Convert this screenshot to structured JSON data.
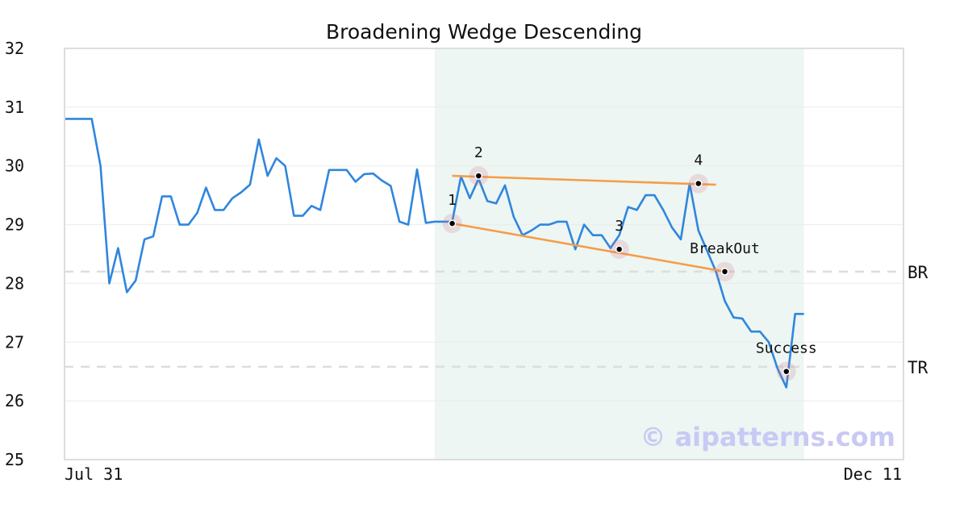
{
  "chart_data": {
    "type": "line",
    "title": "Broadening Wedge Descending",
    "xlabel": "",
    "ylabel": "",
    "ylim": [
      25,
      32
    ],
    "y_ticks": [
      25,
      26,
      27,
      28,
      29,
      30,
      31,
      32
    ],
    "x_tick_labels": {
      "start": "Jul 31",
      "end": "Dec 11"
    },
    "grid": true,
    "series": [
      {
        "color": "#2f86de",
        "values": [
          30.8,
          30.8,
          30.8,
          30.8,
          30.0,
          28.0,
          28.6,
          27.85,
          28.05,
          28.75,
          28.8,
          29.48,
          29.48,
          29.0,
          29.0,
          29.2,
          29.63,
          29.25,
          29.25,
          29.45,
          29.55,
          29.68,
          30.45,
          29.83,
          30.13,
          30.0,
          29.15,
          29.15,
          29.32,
          29.25,
          29.93,
          29.93,
          29.93,
          29.73,
          29.86,
          29.87,
          29.75,
          29.66,
          29.05,
          29.0,
          29.94,
          29.03,
          29.05,
          29.05,
          29.05,
          29.82,
          29.45,
          29.78,
          29.4,
          29.36,
          29.67,
          29.13,
          28.82,
          28.9,
          29.0,
          29.0,
          29.05,
          29.05,
          28.58,
          29.0,
          28.82,
          28.82,
          28.6,
          28.82,
          29.3,
          29.25,
          29.5,
          29.5,
          29.25,
          28.95,
          28.75,
          29.7,
          28.9,
          28.55,
          28.2,
          27.7,
          27.42,
          27.4,
          27.18,
          27.18,
          27.0,
          26.55,
          26.23,
          27.48,
          27.48
        ]
      }
    ],
    "highlight_region": {
      "start_index": 42,
      "end_index": 84,
      "color": "#edf6f2"
    },
    "trend_lines": [
      {
        "color": "#f59d4a",
        "from": {
          "index": 44,
          "value": 29.83
        },
        "to": {
          "index": 74,
          "value": 29.68
        }
      },
      {
        "color": "#f59d4a",
        "from": {
          "index": 44,
          "value": 29.02
        },
        "to": {
          "index": 75,
          "value": 28.2
        }
      }
    ],
    "reference_lines": [
      {
        "label": "BR",
        "value": 28.2,
        "color": "#dddddd"
      },
      {
        "label": "TR",
        "value": 26.58,
        "color": "#dddddd"
      }
    ],
    "markers": [
      {
        "label": "1",
        "index": 44,
        "value": 29.02,
        "label_pos": "above"
      },
      {
        "label": "2",
        "index": 47,
        "value": 29.83,
        "label_pos": "above"
      },
      {
        "label": "3",
        "index": 63,
        "value": 28.58,
        "label_pos": "above"
      },
      {
        "label": "4",
        "index": 72,
        "value": 29.7,
        "label_pos": "above"
      },
      {
        "label": "BreakOut",
        "index": 75,
        "value": 28.2,
        "label_pos": "above"
      },
      {
        "label": "Success",
        "index": 82,
        "value": 26.5,
        "label_pos": "above"
      }
    ],
    "watermark": "© aipatterns.com"
  }
}
